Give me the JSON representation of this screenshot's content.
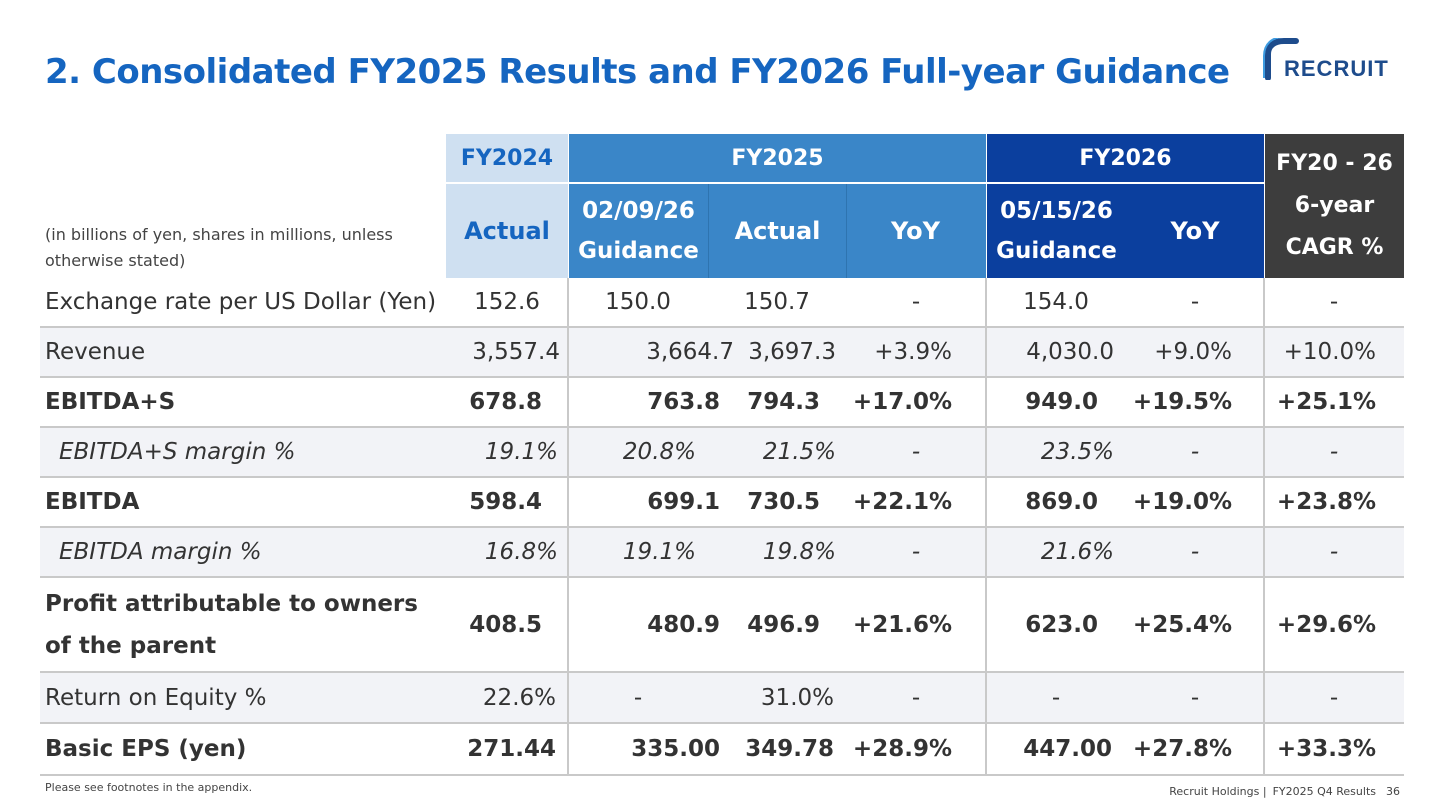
{
  "title": "2. Consolidated FY2025 Results and FY2026 Full-year Guidance",
  "logo": {
    "text": "RECRUIT",
    "brand_color": "#1e4c8c"
  },
  "colors": {
    "title": "#1565c0",
    "fy2024_header": "#cfe0f1",
    "fy2025_header": "#3a86c8",
    "fy2026_header": "#0b3f9e",
    "cagr_header": "#3d3d3d",
    "row_alt": "#f2f3f7"
  },
  "table": {
    "unit_note": "(in billions of yen, shares in millions, unless otherwise stated)",
    "groups": {
      "fy2024": "FY2024",
      "fy2025": "FY2025",
      "fy2026": "FY2026",
      "cagr": "FY20 - 26 6-year CAGR %"
    },
    "subheaders": {
      "fy2024_actual": "Actual",
      "fy2025_guidance": "02/09/26 Guidance",
      "fy2025_actual": "Actual",
      "fy2025_yoy": "YoY",
      "fy2026_guidance": "05/15/26 Guidance",
      "fy2026_yoy": "YoY"
    },
    "rows": [
      {
        "label": "Exchange rate per US Dollar (Yen)",
        "values": [
          "152.6",
          "150.0",
          "150.7",
          "-",
          "154.0",
          "-",
          "-"
        ]
      },
      {
        "label": "Revenue",
        "values": [
          "3,557.4",
          "3,664.7",
          "3,697.3",
          "+3.9%",
          "4,030.0",
          "+9.0%",
          "+10.0%"
        ]
      },
      {
        "label": "EBITDA+S",
        "values": [
          "678.8",
          "763.8",
          "794.3",
          "+17.0%",
          "949.0",
          "+19.5%",
          "+25.1%"
        ]
      },
      {
        "label": "EBITDA+S margin %",
        "values": [
          "19.1%",
          "20.8%",
          "21.5%",
          "-",
          "23.5%",
          "-",
          "-"
        ]
      },
      {
        "label": "EBITDA",
        "values": [
          "598.4",
          "699.1",
          "730.5",
          "+22.1%",
          "869.0",
          "+19.0%",
          "+23.8%"
        ]
      },
      {
        "label": "EBITDA margin %",
        "values": [
          "16.8%",
          "19.1%",
          "19.8%",
          "-",
          "21.6%",
          "-",
          "-"
        ]
      },
      {
        "label": "Profit attributable to owners of the parent",
        "values": [
          "408.5",
          "480.9",
          "496.9",
          "+21.6%",
          "623.0",
          "+25.4%",
          "+29.6%"
        ]
      },
      {
        "label": "Return on Equity %",
        "values": [
          "22.6%",
          "-",
          "31.0%",
          "-",
          "-",
          "-",
          "-"
        ]
      },
      {
        "label": "Basic EPS (yen)",
        "values": [
          "271.44",
          "335.00",
          "349.78",
          "+28.9%",
          "447.00",
          "+27.8%",
          "+33.3%"
        ]
      }
    ]
  },
  "footnote": "Please see footnotes in the appendix.",
  "footer": {
    "company": "Recruit Holdings |",
    "deck": "FY2025 Q4 Results",
    "page": "36"
  }
}
